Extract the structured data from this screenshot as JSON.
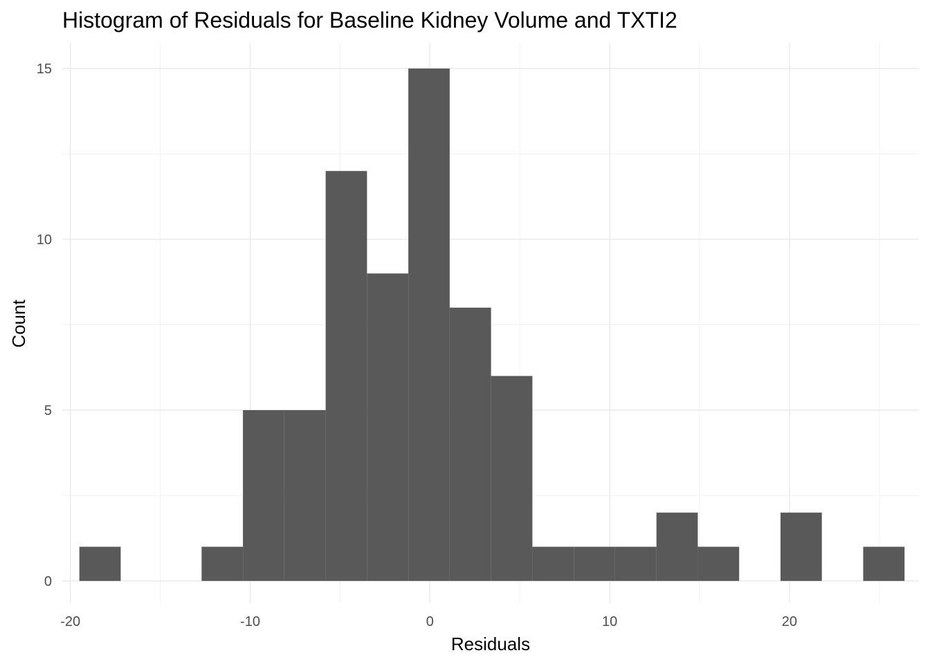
{
  "chart_data": {
    "type": "bar",
    "subtype": "histogram",
    "title": "Histogram of Residuals for Baseline Kidney Volume and TXTI2",
    "xlabel": "Residuals",
    "ylabel": "Count",
    "xlim": [
      -20.45,
      27.2
    ],
    "ylim": [
      -0.65,
      15.75
    ],
    "x_ticks": [
      -20,
      -10,
      0,
      10,
      20
    ],
    "x_tick_labels": [
      "-20",
      "-10",
      "0",
      "10",
      "20"
    ],
    "y_ticks": [
      0,
      5,
      10,
      15
    ],
    "y_tick_labels": [
      "0",
      "5",
      "10",
      "15"
    ],
    "x_minor_ticks": [
      -15,
      -5,
      5,
      15,
      25
    ],
    "y_minor_ticks": [
      2.5,
      7.5,
      12.5
    ],
    "grid": true,
    "bar_color": "#595959",
    "bins": [
      {
        "x0": -19.5,
        "x1": -17.2,
        "count": 1
      },
      {
        "x0": -12.7,
        "x1": -10.4,
        "count": 1
      },
      {
        "x0": -10.4,
        "x1": -8.1,
        "count": 5
      },
      {
        "x0": -8.1,
        "x1": -5.8,
        "count": 5
      },
      {
        "x0": -5.8,
        "x1": -3.5,
        "count": 12
      },
      {
        "x0": -3.5,
        "x1": -1.2,
        "count": 9
      },
      {
        "x0": -1.2,
        "x1": 1.1,
        "count": 15
      },
      {
        "x0": 1.1,
        "x1": 3.4,
        "count": 8
      },
      {
        "x0": 3.4,
        "x1": 5.7,
        "count": 6
      },
      {
        "x0": 5.7,
        "x1": 8.0,
        "count": 1
      },
      {
        "x0": 8.0,
        "x1": 10.3,
        "count": 1
      },
      {
        "x0": 10.3,
        "x1": 12.6,
        "count": 1
      },
      {
        "x0": 12.6,
        "x1": 14.9,
        "count": 2
      },
      {
        "x0": 14.9,
        "x1": 17.2,
        "count": 1
      },
      {
        "x0": 19.5,
        "x1": 21.8,
        "count": 2
      },
      {
        "x0": 24.1,
        "x1": 26.4,
        "count": 1
      }
    ]
  }
}
